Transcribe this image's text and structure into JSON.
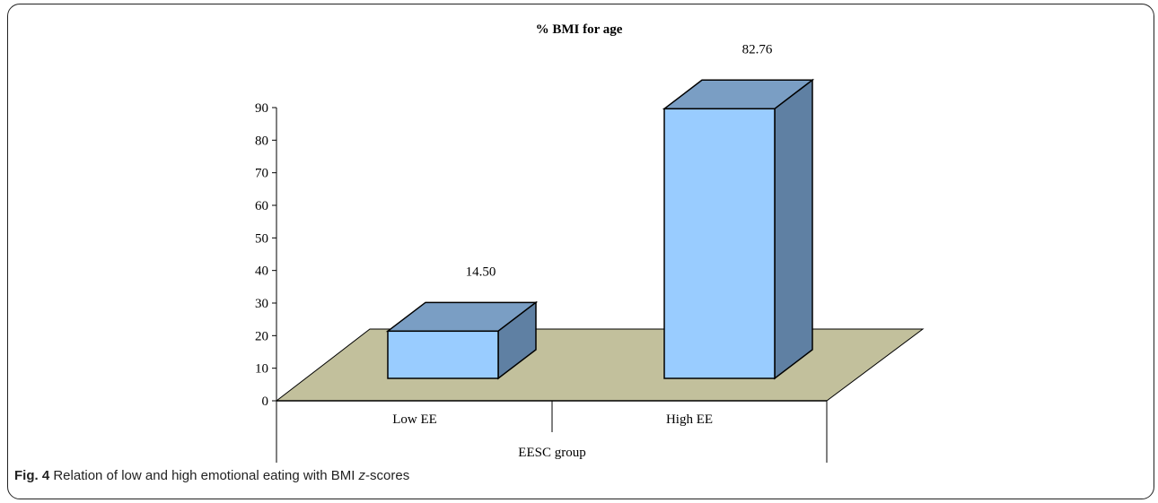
{
  "caption": {
    "label": "Fig. 4",
    "text_before": "Relation of low and high emotional eating with BMI ",
    "text_italic": "z",
    "text_after": "-scores"
  },
  "chart_data": {
    "type": "bar",
    "title": "% BMI for age",
    "categories": [
      "Low EE",
      "High EE"
    ],
    "values": [
      14.5,
      82.76
    ],
    "data_labels": [
      "14.50",
      "82.76"
    ],
    "xlabel": "EESC group",
    "ylabel": "",
    "ylim": [
      0,
      90
    ],
    "yticks": [
      "0",
      "10",
      "20",
      "30",
      "40",
      "50",
      "60",
      "70",
      "80",
      "90"
    ],
    "grid": false,
    "legend": "none",
    "style": "3d",
    "colors": {
      "bar_front": "#99ccff",
      "bar_top": "#7a9ec4",
      "bar_side": "#5f80a3",
      "floor": "#c2c09c"
    }
  }
}
